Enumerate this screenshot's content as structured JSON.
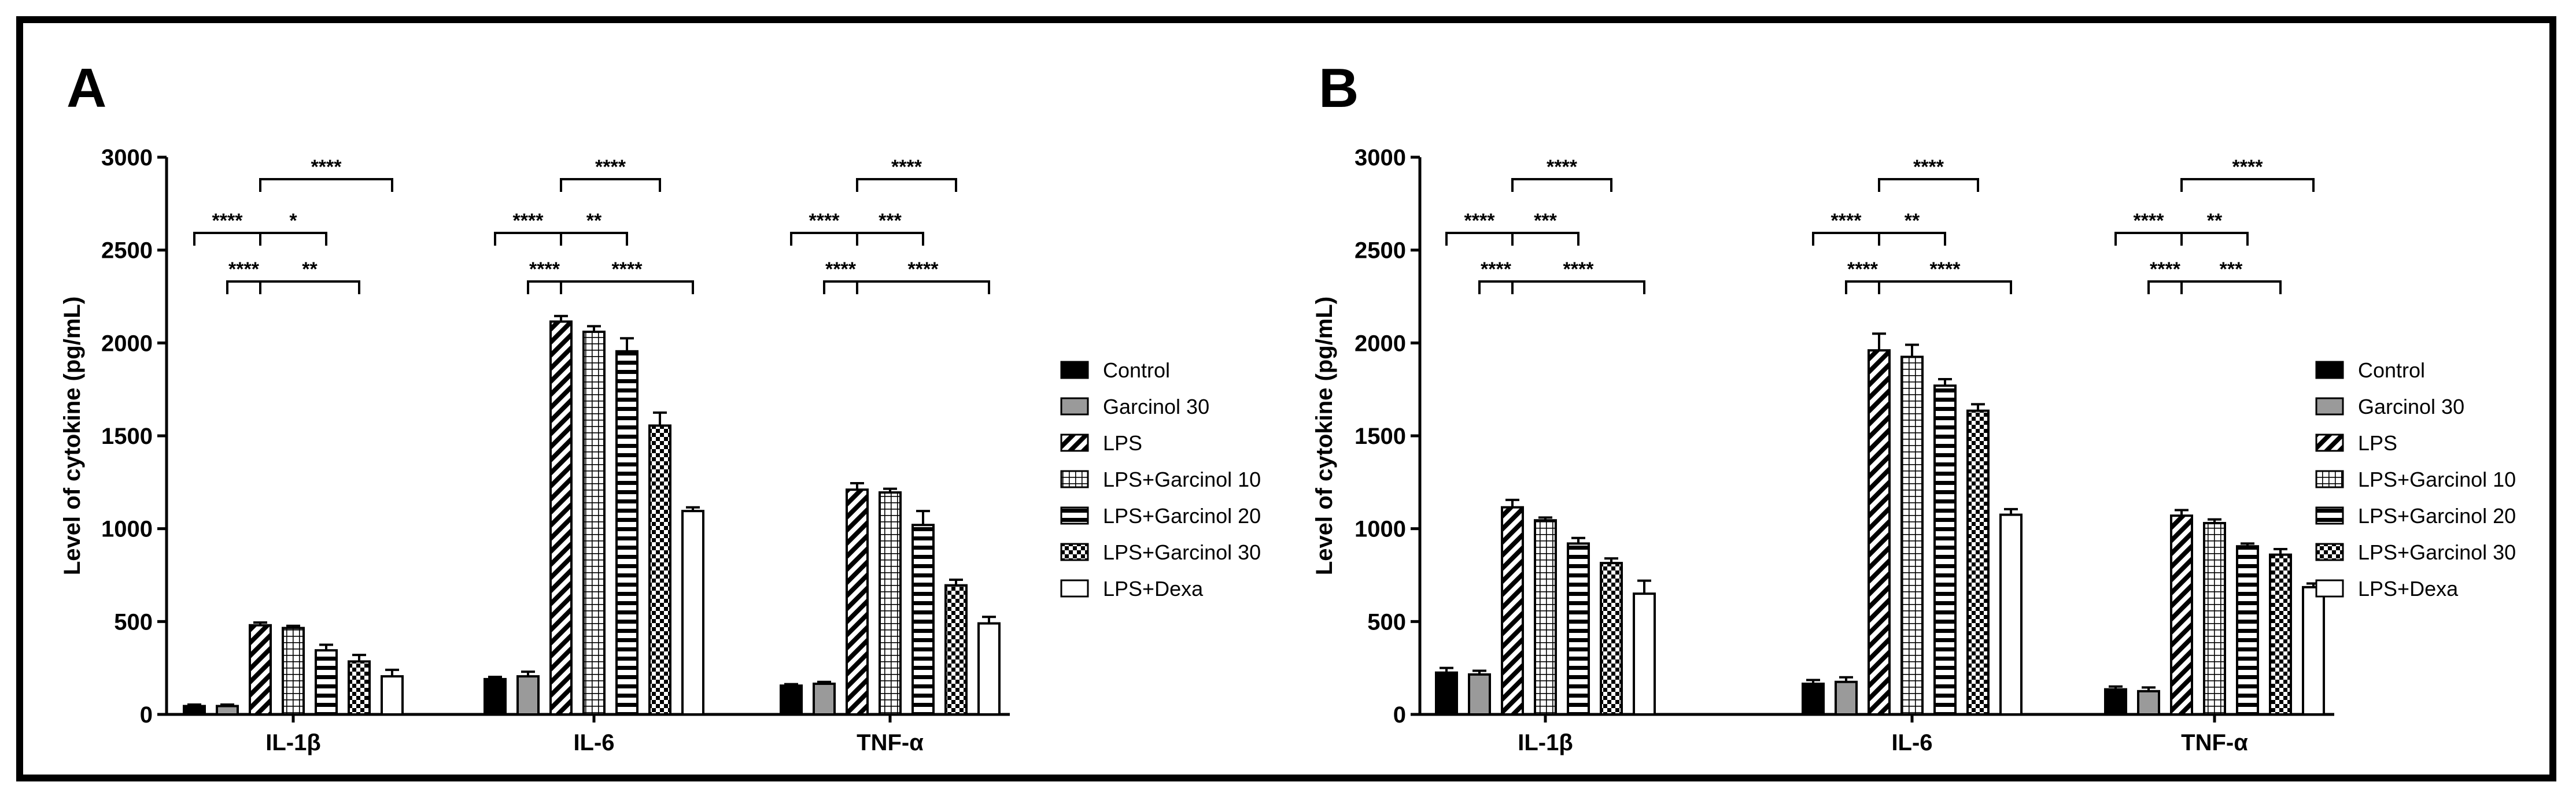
{
  "colors": {
    "black": "#000000",
    "gray": "#9a9a9a",
    "white": "#ffffff"
  },
  "patterns": [
    "solid-black",
    "solid-gray",
    "diagonal",
    "grid",
    "horizontal",
    "checker",
    "white"
  ],
  "chart_data": [
    {
      "panel": "A",
      "type": "bar",
      "ylabel": "Level of cytokine (pg/mL)",
      "ylim": [
        0,
        3000
      ],
      "yticks": [
        0,
        500,
        1000,
        1500,
        2000,
        2500,
        3000
      ],
      "categories": [
        "IL-1β",
        "IL-6",
        "TNF-α"
      ],
      "series": [
        {
          "name": "Control",
          "values": [
            45,
            190,
            155
          ],
          "errors": [
            8,
            12,
            8
          ]
        },
        {
          "name": "Garcinol 30",
          "values": [
            45,
            205,
            165
          ],
          "errors": [
            8,
            25,
            10
          ]
        },
        {
          "name": "LPS",
          "values": [
            480,
            2115,
            1210
          ],
          "errors": [
            15,
            30,
            35
          ]
        },
        {
          "name": "LPS+Garcinol 10",
          "values": [
            465,
            2060,
            1195
          ],
          "errors": [
            12,
            30,
            20
          ]
        },
        {
          "name": "LPS+Garcinol 20",
          "values": [
            345,
            1955,
            1020
          ],
          "errors": [
            30,
            70,
            75
          ]
        },
        {
          "name": "LPS+Garcinol 30",
          "values": [
            285,
            1555,
            695
          ],
          "errors": [
            35,
            70,
            30
          ]
        },
        {
          "name": "LPS+Dexa",
          "values": [
            205,
            1095,
            490
          ],
          "errors": [
            35,
            20,
            35
          ]
        }
      ],
      "significance": [
        [
          {
            "from": 0,
            "to": 2,
            "row": 1,
            "label": "****"
          },
          {
            "from": 1,
            "to": 2,
            "row": 2,
            "label": "****"
          },
          {
            "from": 2,
            "to": 6,
            "row": 0,
            "label": "****"
          },
          {
            "from": 2,
            "to": 4,
            "row": 1,
            "label": "*"
          },
          {
            "from": 2,
            "to": 5,
            "row": 2,
            "label": "**"
          }
        ],
        [
          {
            "from": 0,
            "to": 2,
            "row": 1,
            "label": "****"
          },
          {
            "from": 1,
            "to": 2,
            "row": 2,
            "label": "****"
          },
          {
            "from": 2,
            "to": 5,
            "row": 0,
            "label": "****"
          },
          {
            "from": 2,
            "to": 4,
            "row": 1,
            "label": "**"
          },
          {
            "from": 2,
            "to": 6,
            "row": 2,
            "label": "****"
          }
        ],
        [
          {
            "from": 0,
            "to": 2,
            "row": 1,
            "label": "****"
          },
          {
            "from": 1,
            "to": 2,
            "row": 2,
            "label": "****"
          },
          {
            "from": 2,
            "to": 5,
            "row": 0,
            "label": "****"
          },
          {
            "from": 2,
            "to": 4,
            "row": 1,
            "label": "***"
          },
          {
            "from": 2,
            "to": 6,
            "row": 2,
            "label": "****"
          }
        ]
      ]
    },
    {
      "panel": "B",
      "type": "bar",
      "ylabel": "Level of cytokine (pg/mL)",
      "ylim": [
        0,
        3000
      ],
      "yticks": [
        0,
        500,
        1000,
        1500,
        2000,
        2500,
        3000
      ],
      "categories": [
        "IL-1β",
        "IL-6",
        "TNF-α"
      ],
      "series": [
        {
          "name": "Control",
          "values": [
            225,
            165,
            135
          ],
          "errors": [
            25,
            20,
            15
          ]
        },
        {
          "name": "Garcinol 30",
          "values": [
            215,
            175,
            125
          ],
          "errors": [
            20,
            25,
            20
          ]
        },
        {
          "name": "LPS",
          "values": [
            1115,
            1960,
            1070
          ],
          "errors": [
            40,
            90,
            30
          ]
        },
        {
          "name": "LPS+Garcinol 10",
          "values": [
            1045,
            1925,
            1030
          ],
          "errors": [
            15,
            65,
            20
          ]
        },
        {
          "name": "LPS+Garcinol 20",
          "values": [
            920,
            1770,
            905
          ],
          "errors": [
            30,
            35,
            15
          ]
        },
        {
          "name": "LPS+Garcinol 30",
          "values": [
            815,
            1635,
            860
          ],
          "errors": [
            25,
            35,
            30
          ]
        },
        {
          "name": "LPS+Dexa",
          "values": [
            650,
            1075,
            685
          ],
          "errors": [
            70,
            30,
            20
          ]
        }
      ],
      "significance": [
        [
          {
            "from": 0,
            "to": 2,
            "row": 1,
            "label": "****"
          },
          {
            "from": 1,
            "to": 2,
            "row": 2,
            "label": "****"
          },
          {
            "from": 2,
            "to": 5,
            "row": 0,
            "label": "****"
          },
          {
            "from": 2,
            "to": 4,
            "row": 1,
            "label": "***"
          },
          {
            "from": 2,
            "to": 6,
            "row": 2,
            "label": "****"
          }
        ],
        [
          {
            "from": 0,
            "to": 2,
            "row": 1,
            "label": "****"
          },
          {
            "from": 1,
            "to": 2,
            "row": 2,
            "label": "****"
          },
          {
            "from": 2,
            "to": 5,
            "row": 0,
            "label": "****"
          },
          {
            "from": 2,
            "to": 4,
            "row": 1,
            "label": "**"
          },
          {
            "from": 2,
            "to": 6,
            "row": 2,
            "label": "****"
          }
        ],
        [
          {
            "from": 0,
            "to": 2,
            "row": 1,
            "label": "****"
          },
          {
            "from": 1,
            "to": 2,
            "row": 2,
            "label": "****"
          },
          {
            "from": 2,
            "to": 6,
            "row": 0,
            "label": "****"
          },
          {
            "from": 2,
            "to": 4,
            "row": 1,
            "label": "**"
          },
          {
            "from": 2,
            "to": 5,
            "row": 2,
            "label": "***"
          }
        ]
      ]
    }
  ]
}
